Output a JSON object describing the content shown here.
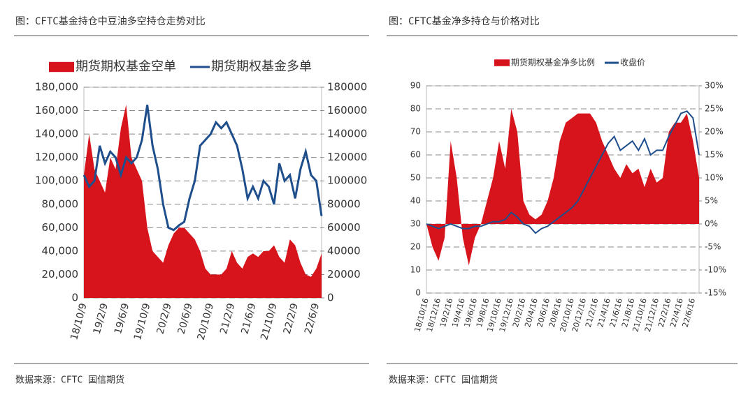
{
  "header": {
    "left_title": "图：CFTC基金持仓中豆油多空持仓走势对比",
    "right_title": "图：CFTC基金净多持仓与价格对比"
  },
  "footer": {
    "left_source": "数据来源：CFTC 国信期货",
    "right_source": "数据来源：CFTC 国信期货"
  },
  "chart_data": [
    {
      "type": "combo",
      "categories": [
        "18/10/9",
        null,
        null,
        null,
        "19/2/9",
        null,
        null,
        null,
        "19/6/9",
        null,
        null,
        null,
        "19/10/9",
        null,
        null,
        null,
        "20/2/9",
        null,
        null,
        null,
        "20/6/9",
        null,
        null,
        null,
        "20/10/9",
        null,
        null,
        null,
        "21/2/9",
        null,
        null,
        null,
        "21/6/9",
        null,
        null,
        null,
        "21/10/9",
        null,
        null,
        null,
        "22/2/9",
        null,
        null,
        null,
        "22/6/9",
        null
      ],
      "series": [
        {
          "name": "期货期权基金空单",
          "color": "#d7141c",
          "kind": "area",
          "axis": "y",
          "values": [
            105000,
            140000,
            110000,
            100000,
            90000,
            120000,
            110000,
            145000,
            165000,
            120000,
            110000,
            100000,
            60000,
            40000,
            35000,
            30000,
            45000,
            55000,
            60000,
            60000,
            55000,
            50000,
            40000,
            25000,
            20000,
            20000,
            20000,
            25000,
            40000,
            30000,
            25000,
            35000,
            38000,
            35000,
            40000,
            40000,
            45000,
            35000,
            30000,
            50000,
            45000,
            30000,
            20000,
            18000,
            25000,
            38000
          ]
        },
        {
          "name": "期货期权基金多单",
          "color": "#1f4e8c",
          "kind": "line",
          "axis": "y2",
          "values": [
            105000,
            95000,
            100000,
            130000,
            115000,
            125000,
            120000,
            105000,
            120000,
            115000,
            120000,
            135000,
            165000,
            130000,
            110000,
            80000,
            60000,
            58000,
            62000,
            65000,
            85000,
            100000,
            130000,
            135000,
            140000,
            150000,
            145000,
            150000,
            140000,
            130000,
            110000,
            85000,
            95000,
            85000,
            100000,
            95000,
            80000,
            115000,
            100000,
            105000,
            85000,
            110000,
            125000,
            105000,
            100000,
            70000
          ]
        }
      ],
      "ylim": [
        0,
        180000
      ],
      "yticks": [
        0,
        {
          "value": 20000,
          "label": "20,000"
        },
        {
          "value": 40000,
          "label": "40,000"
        },
        {
          "value": 60000,
          "label": "60,000"
        },
        {
          "value": 80000,
          "label": "80,000"
        },
        {
          "value": 100000,
          "label": "100,000"
        },
        {
          "value": 120000,
          "label": "120,000"
        },
        {
          "value": 140000,
          "label": "140,000"
        },
        {
          "value": 160000,
          "label": "160,000"
        },
        {
          "value": 180000,
          "label": "180,000"
        }
      ],
      "y2lim": [
        0,
        180000
      ],
      "y2ticks": [
        0,
        20000,
        40000,
        60000,
        80000,
        100000,
        120000,
        140000,
        160000,
        180000
      ],
      "grid": true
    },
    {
      "type": "combo",
      "categories": [
        "18/10/16",
        null,
        "18/12/16",
        null,
        "19/2/16",
        null,
        "19/4/16",
        null,
        "19/6/16",
        null,
        "19/8/16",
        null,
        "19/10/16",
        null,
        "19/12/16",
        null,
        "20/2/16",
        null,
        "20/4/16",
        null,
        "20/6/16",
        null,
        "20/8/16",
        null,
        "20/10/16",
        null,
        "20/12/16",
        null,
        "21/2/16",
        null,
        "21/4/16",
        null,
        "21/6/16",
        null,
        "21/8/16",
        null,
        "21/10/16",
        null,
        "21/12/16",
        null,
        "22/2/16",
        null,
        "22/4/16",
        null,
        "22/6/16",
        null
      ],
      "series": [
        {
          "name": "期货期权基金净多比例",
          "color": "#d7141c",
          "kind": "area",
          "axis": "y2",
          "values": [
            0,
            -5,
            -8,
            -3,
            18,
            10,
            -3,
            -9,
            -3,
            0,
            5,
            10,
            18,
            12,
            25,
            20,
            5,
            2,
            1,
            2,
            5,
            10,
            18,
            22,
            23,
            24,
            24,
            24,
            22,
            18,
            15,
            12,
            10,
            13,
            11,
            12,
            8,
            12,
            9,
            10,
            20,
            22,
            22,
            24,
            18,
            10
          ]
        },
        {
          "name": "收盘价",
          "color": "#1f4e8c",
          "kind": "line",
          "axis": "y",
          "values": [
            30,
            29,
            28,
            29,
            30,
            29,
            28,
            28,
            29,
            29,
            30,
            31,
            31,
            32,
            35,
            33,
            30,
            29,
            26,
            28,
            29,
            31,
            33,
            35,
            37,
            40,
            45,
            50,
            55,
            60,
            65,
            68,
            62,
            64,
            66,
            62,
            67,
            60,
            62,
            62,
            68,
            73,
            78,
            79,
            76,
            60
          ]
        }
      ],
      "ylim": [
        0,
        90
      ],
      "yticks": [
        0,
        10,
        20,
        30,
        40,
        50,
        60,
        70,
        80,
        90
      ],
      "y2lim": [
        -15,
        30
      ],
      "y2ticks": [
        {
          "value": -15,
          "label": "-15%"
        },
        {
          "value": -10,
          "label": "-10%"
        },
        {
          "value": -5,
          "label": "-5%"
        },
        {
          "value": 0,
          "label": "0%"
        },
        {
          "value": 5,
          "label": "5%"
        },
        {
          "value": 10,
          "label": "10%"
        },
        {
          "value": 15,
          "label": "15%"
        },
        {
          "value": 20,
          "label": "20%"
        },
        {
          "value": 25,
          "label": "25%"
        },
        {
          "value": 30,
          "label": "30%"
        }
      ],
      "grid": true
    }
  ]
}
